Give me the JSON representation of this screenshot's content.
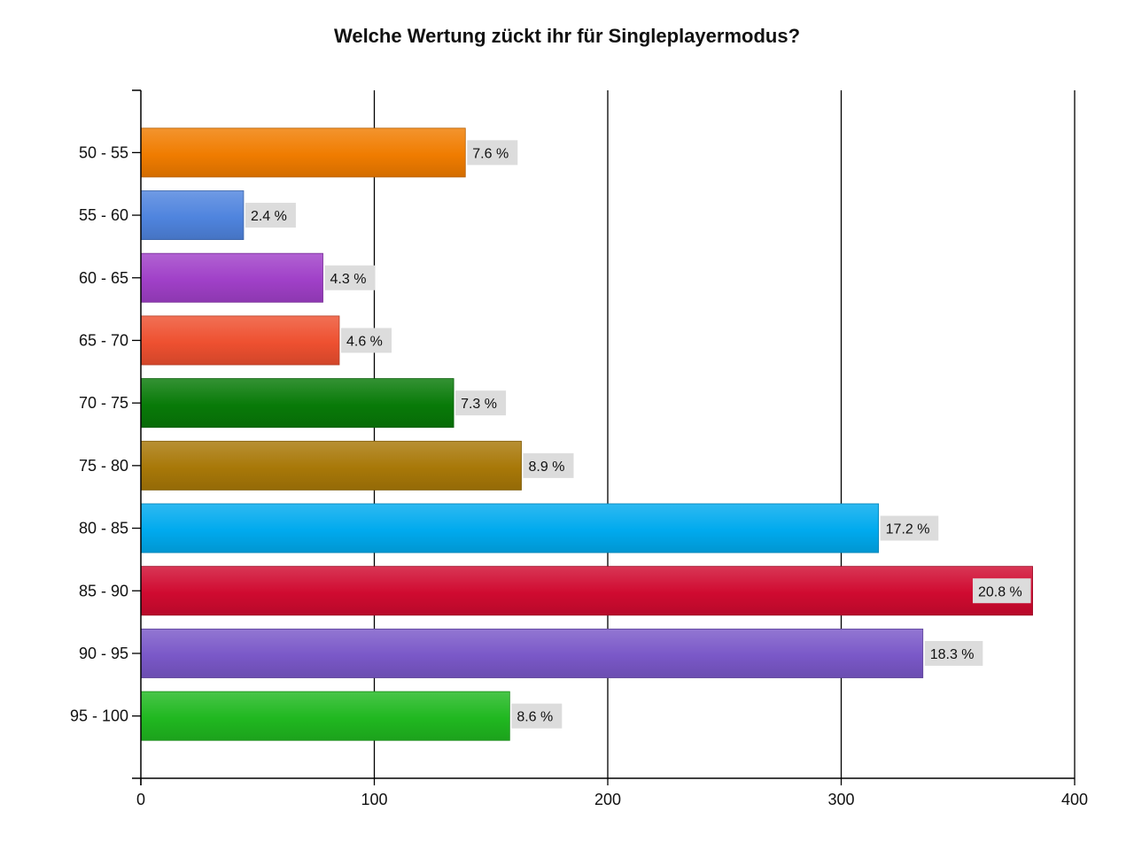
{
  "chart_data": {
    "type": "bar",
    "orientation": "horizontal",
    "title": "Welche Wertung zückt ihr für Singleplayermodus?",
    "xlabel": "",
    "ylabel": "",
    "xlim": [
      0,
      400
    ],
    "x_ticks": [
      "0",
      "100",
      "200",
      "300",
      "400"
    ],
    "grid": "vertical",
    "legend": "none",
    "categories": [
      "50 - 55",
      "55 - 60",
      "60 - 65",
      "65 - 70",
      "70 - 75",
      "75 - 80",
      "80 - 85",
      "85 - 90",
      "90 - 95",
      "95 - 100"
    ],
    "values": [
      139,
      44,
      78,
      85,
      134,
      163,
      316,
      382,
      335,
      158
    ],
    "labels": [
      "7.6 %",
      "2.4 %",
      "4.3 %",
      "4.6 %",
      "7.3 %",
      "8.9 %",
      "17.2 %",
      "20.8 %",
      "18.3 %",
      "8.6 %"
    ],
    "colors": [
      "#f07c00",
      "#4f84de",
      "#a040c8",
      "#ee5030",
      "#087a08",
      "#a87808",
      "#00aaee",
      "#d00a30",
      "#7a58c8",
      "#20b820"
    ]
  }
}
